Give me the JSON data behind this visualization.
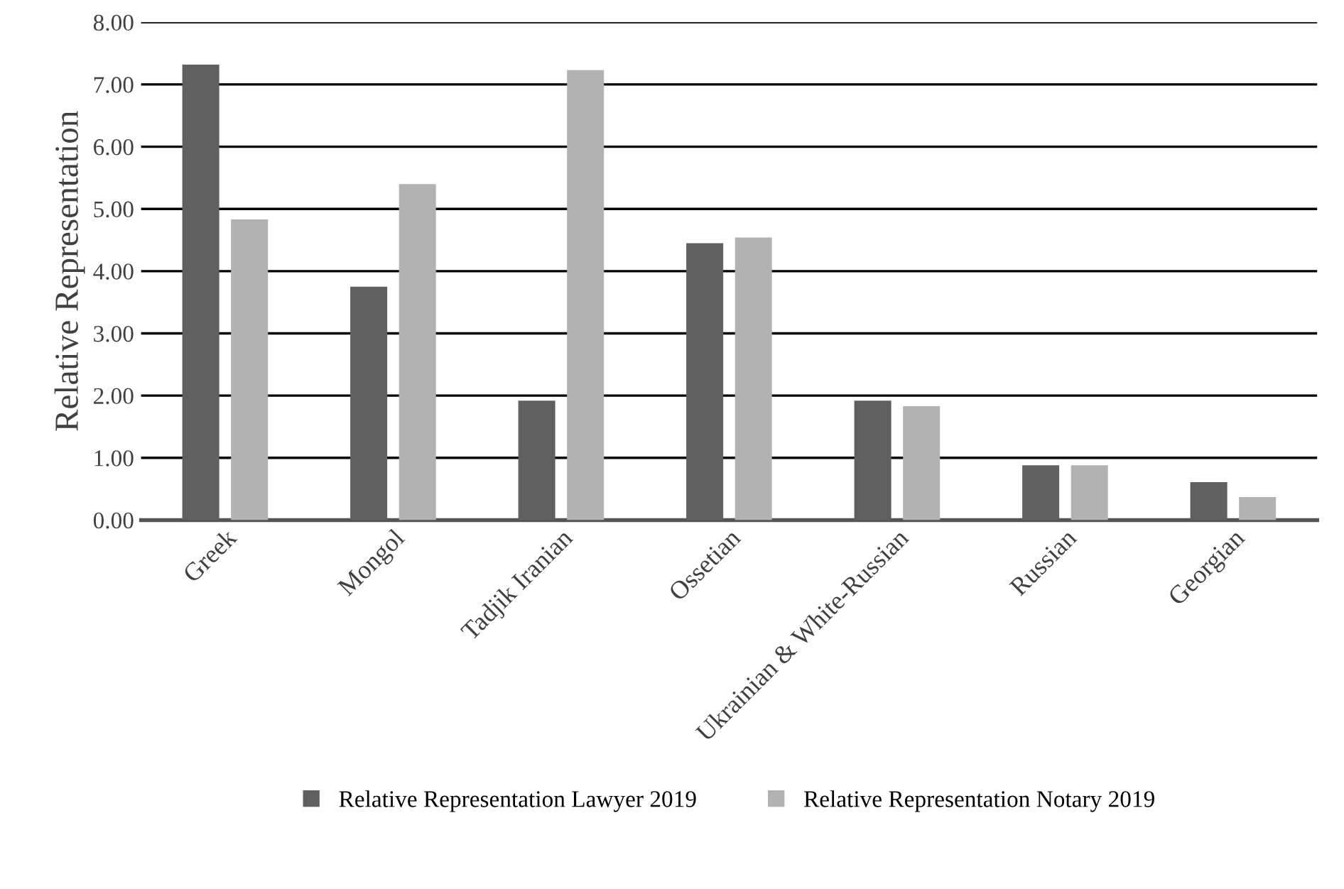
{
  "chart_data": {
    "type": "bar",
    "ylabel": "Relative Representation",
    "categories": [
      "Greek",
      "Mongol",
      "Tadjik Iranian",
      "Ossetian",
      "Ukrainian & White-Russian",
      "Russian",
      "Georgian"
    ],
    "series": [
      {
        "name": "Relative Representation Lawyer 2019",
        "color": "#606060",
        "values": [
          7.32,
          3.75,
          1.92,
          4.45,
          1.92,
          0.88,
          0.61
        ]
      },
      {
        "name": "Relative Representation Notary 2019",
        "color": "#b2b2b2",
        "values": [
          4.83,
          5.4,
          7.23,
          4.54,
          1.83,
          0.88,
          0.37
        ]
      }
    ],
    "ylim": [
      0,
      8
    ],
    "yticks": [
      {
        "value": 0,
        "label": "0.00"
      },
      {
        "value": 1,
        "label": "1.00"
      },
      {
        "value": 2,
        "label": "2.00"
      },
      {
        "value": 3,
        "label": "3.00"
      },
      {
        "value": 4,
        "label": "4.00"
      },
      {
        "value": 5,
        "label": "5.00"
      },
      {
        "value": 6,
        "label": "6.00"
      },
      {
        "value": 7,
        "label": "7.00"
      },
      {
        "value": 8,
        "label": "8.00"
      }
    ],
    "grid": "y",
    "legend": "bottom"
  }
}
